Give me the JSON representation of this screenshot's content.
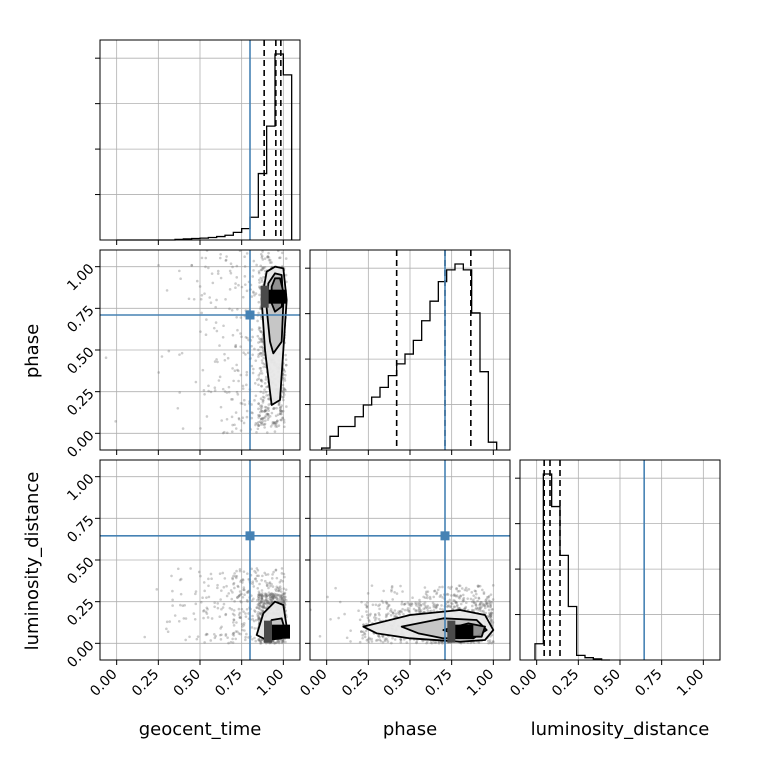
{
  "colors": {
    "truth": "#4682b4",
    "hist": "#000000",
    "grid": "#b0b0b0",
    "density_scale": [
      "#ffffff",
      "#e8e8e8",
      "#c4c4c4",
      "#8e8e8e",
      "#4a4a4a",
      "#000000"
    ],
    "sample_points": "#6e6e6e"
  },
  "chart_data": {
    "type": "corner",
    "parameters": [
      "geocent_time",
      "phase",
      "luminosity_distance"
    ],
    "truths": [
      0.8,
      0.71,
      0.645
    ],
    "x_ticks": [
      0.0,
      0.25,
      0.5,
      0.75,
      1.0
    ],
    "x_tick_labels": [
      "0.00",
      "0.25",
      "0.50",
      "0.75",
      "1.00"
    ],
    "axis_range": [
      -0.1,
      1.1
    ],
    "grid": true,
    "diagonal": [
      {
        "parameter": "geocent_time",
        "bin_edges": [
          0.0,
          0.05,
          0.1,
          0.15,
          0.2,
          0.25,
          0.3,
          0.35,
          0.4,
          0.45,
          0.5,
          0.55,
          0.6,
          0.65,
          0.7,
          0.75,
          0.8,
          0.85,
          0.9,
          0.95,
          1.0,
          1.05
        ],
        "counts": [
          0,
          0,
          0,
          0,
          0,
          0,
          0,
          0.003,
          0.006,
          0.008,
          0.01,
          0.013,
          0.018,
          0.025,
          0.04,
          0.06,
          0.12,
          0.35,
          0.6,
          0.98,
          0.87
        ],
        "quantiles": [
          0.885,
          0.955,
          0.985
        ]
      },
      {
        "parameter": "phase",
        "bin_edges": [
          -0.03,
          0.02,
          0.07,
          0.12,
          0.17,
          0.22,
          0.27,
          0.32,
          0.37,
          0.42,
          0.47,
          0.52,
          0.57,
          0.62,
          0.67,
          0.72,
          0.77,
          0.82,
          0.87,
          0.92,
          0.97,
          1.02
        ],
        "counts": [
          0.01,
          0.07,
          0.12,
          0.12,
          0.17,
          0.23,
          0.27,
          0.32,
          0.38,
          0.44,
          0.49,
          0.56,
          0.66,
          0.76,
          0.86,
          0.92,
          0.95,
          0.92,
          0.7,
          0.4,
          0.04
        ],
        "quantiles": [
          0.42,
          0.71,
          0.865
        ]
      },
      {
        "parameter": "luminosity_distance",
        "bin_edges": [
          -0.01,
          0.04,
          0.09,
          0.14,
          0.19,
          0.24,
          0.29,
          0.34,
          0.39,
          0.44
        ],
        "counts": [
          0.07,
          0.8,
          0.66,
          0.45,
          0.23,
          0.02,
          0.01,
          0.005,
          0.0
        ],
        "quantiles": [
          0.045,
          0.08,
          0.14
        ]
      }
    ],
    "pairs": [
      {
        "x": "geocent_time",
        "y": "phase",
        "sample_box": {
          "x": [
            0.25,
            1.02
          ],
          "y": [
            0.0,
            1.1
          ]
        },
        "core": {
          "x": [
            0.85,
            1.01
          ],
          "y": [
            0.05,
            1.0
          ]
        },
        "hist_peak": [
          0.96,
          0.82
        ],
        "contours": [
          [
            [
              0.93,
              0.17
            ],
            [
              0.98,
              0.2
            ],
            [
              1.0,
              0.5
            ],
            [
              1.02,
              0.8
            ],
            [
              1.0,
              0.99
            ],
            [
              0.95,
              1.0
            ],
            [
              0.9,
              0.97
            ],
            [
              0.87,
              0.8
            ],
            [
              0.89,
              0.5
            ],
            [
              0.92,
              0.25
            ]
          ],
          [
            [
              0.94,
              0.48
            ],
            [
              0.99,
              0.55
            ],
            [
              1.0,
              0.78
            ],
            [
              0.99,
              0.95
            ],
            [
              0.95,
              0.96
            ],
            [
              0.91,
              0.9
            ],
            [
              0.9,
              0.75
            ],
            [
              0.92,
              0.55
            ]
          ],
          [
            [
              0.95,
              0.73
            ],
            [
              0.99,
              0.76
            ],
            [
              1.0,
              0.85
            ],
            [
              0.98,
              0.93
            ],
            [
              0.95,
              0.93
            ],
            [
              0.93,
              0.88
            ],
            [
              0.93,
              0.78
            ]
          ]
        ]
      },
      {
        "x": "geocent_time",
        "y": "luminosity_distance",
        "sample_box": {
          "x": [
            0.2,
            1.02
          ],
          "y": [
            0.0,
            0.45
          ]
        },
        "core": {
          "x": [
            0.85,
            1.01
          ],
          "y": [
            0.0,
            0.3
          ]
        },
        "hist_peak": [
          0.98,
          0.07
        ],
        "contours": [
          [
            [
              0.84,
              0.05
            ],
            [
              0.88,
              0.18
            ],
            [
              0.95,
              0.25
            ],
            [
              1.0,
              0.23
            ],
            [
              1.02,
              0.1
            ],
            [
              0.99,
              0.03
            ],
            [
              0.9,
              0.02
            ]
          ],
          [
            [
              0.89,
              0.06
            ],
            [
              0.93,
              0.14
            ],
            [
              0.99,
              0.15
            ],
            [
              1.01,
              0.08
            ],
            [
              0.97,
              0.04
            ],
            [
              0.91,
              0.04
            ]
          ]
        ]
      },
      {
        "x": "phase",
        "y": "luminosity_distance",
        "sample_box": {
          "x": [
            0.0,
            1.0
          ],
          "y": [
            0.0,
            0.35
          ]
        },
        "core": {
          "x": [
            0.2,
            1.0
          ],
          "y": [
            0.0,
            0.25
          ]
        },
        "hist_peak": [
          0.82,
          0.07
        ],
        "contours": [
          [
            [
              0.22,
              0.1
            ],
            [
              0.5,
              0.17
            ],
            [
              0.8,
              0.2
            ],
            [
              0.95,
              0.17
            ],
            [
              1.0,
              0.08
            ],
            [
              0.95,
              0.02
            ],
            [
              0.8,
              0.01
            ],
            [
              0.5,
              0.03
            ],
            [
              0.3,
              0.06
            ]
          ],
          [
            [
              0.45,
              0.1
            ],
            [
              0.7,
              0.15
            ],
            [
              0.9,
              0.14
            ],
            [
              0.96,
              0.08
            ],
            [
              0.88,
              0.03
            ],
            [
              0.7,
              0.03
            ],
            [
              0.55,
              0.06
            ]
          ],
          [
            [
              0.7,
              0.08
            ],
            [
              0.85,
              0.12
            ],
            [
              0.95,
              0.1
            ],
            [
              0.93,
              0.04
            ],
            [
              0.82,
              0.04
            ]
          ]
        ]
      }
    ],
    "xlabels": [
      "geocent_time",
      "phase",
      "luminosity_distance"
    ],
    "ylabels": [
      "phase",
      "luminosity_distance"
    ]
  }
}
